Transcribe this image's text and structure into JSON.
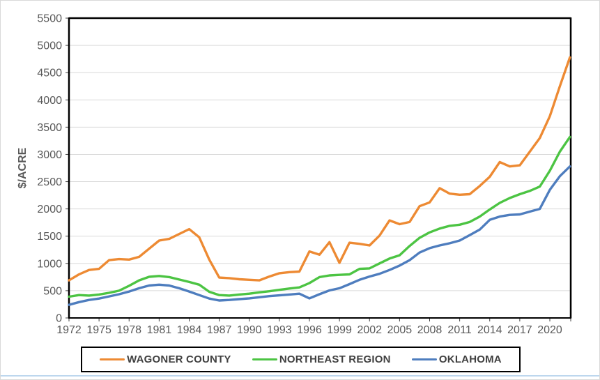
{
  "chart_data": {
    "type": "line",
    "title": "",
    "xlabel": "",
    "ylabel": "$/ACRE",
    "ylim": [
      0,
      5500
    ],
    "ytick_interval": 500,
    "grid": "horizontal-only",
    "legend_position": "bottom-boxed",
    "axis_text_color": "#595959",
    "gridline_color": "#D9D9D9",
    "xtick_labels": [
      "1972",
      "1975",
      "1978",
      "1981",
      "1984",
      "1987",
      "1990",
      "1993",
      "1996",
      "1999",
      "2002",
      "2005",
      "2008",
      "2011",
      "2014",
      "2017",
      "2020"
    ],
    "years": [
      1972,
      1973,
      1974,
      1975,
      1976,
      1977,
      1978,
      1979,
      1980,
      1981,
      1982,
      1983,
      1984,
      1985,
      1986,
      1987,
      1988,
      1989,
      1990,
      1991,
      1992,
      1993,
      1994,
      1995,
      1996,
      1997,
      1998,
      1999,
      2000,
      2001,
      2002,
      2003,
      2004,
      2005,
      2006,
      2007,
      2008,
      2009,
      2010,
      2011,
      2012,
      2013,
      2014,
      2015,
      2016,
      2017,
      2018,
      2019,
      2020,
      2021,
      2022
    ],
    "series": [
      {
        "name": "WAGONER COUNTY",
        "color": "#ED8A33",
        "values": [
          690,
          800,
          880,
          900,
          1060,
          1080,
          1070,
          1120,
          1270,
          1420,
          1450,
          1540,
          1630,
          1480,
          1070,
          740,
          730,
          710,
          700,
          690,
          760,
          820,
          840,
          850,
          1220,
          1160,
          1390,
          1010,
          1380,
          1360,
          1330,
          1510,
          1790,
          1720,
          1760,
          2050,
          2120,
          2380,
          2280,
          2260,
          2270,
          2420,
          2590,
          2860,
          2780,
          2800,
          3050,
          3300,
          3700,
          4250,
          4780
        ]
      },
      {
        "name": "NORTHEAST REGION",
        "color": "#4CC443",
        "values": [
          390,
          420,
          410,
          430,
          460,
          500,
          590,
          690,
          755,
          770,
          750,
          705,
          660,
          610,
          480,
          420,
          410,
          430,
          445,
          470,
          490,
          515,
          540,
          560,
          640,
          750,
          780,
          790,
          800,
          900,
          910,
          1000,
          1090,
          1150,
          1320,
          1470,
          1570,
          1640,
          1690,
          1710,
          1760,
          1860,
          1990,
          2110,
          2200,
          2270,
          2330,
          2410,
          2700,
          3050,
          3320
        ]
      },
      {
        "name": "OKLAHOMA",
        "color": "#4E7DBE",
        "values": [
          240,
          290,
          330,
          355,
          395,
          435,
          485,
          545,
          595,
          610,
          595,
          545,
          485,
          420,
          355,
          320,
          330,
          345,
          360,
          380,
          400,
          415,
          430,
          445,
          360,
          435,
          505,
          545,
          620,
          700,
          760,
          810,
          880,
          960,
          1060,
          1200,
          1280,
          1330,
          1370,
          1420,
          1520,
          1620,
          1800,
          1860,
          1890,
          1900,
          1950,
          2000,
          2350,
          2600,
          2780
        ]
      }
    ]
  }
}
